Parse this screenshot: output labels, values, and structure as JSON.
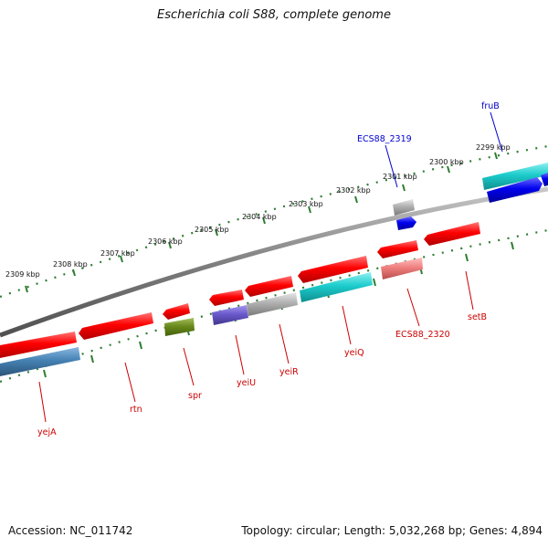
{
  "title": "Escherichia coli S88, complete genome",
  "accession": "Accession: NC_011742",
  "summary": "Topology: circular; Length: 5,032,268 bp; Genes: 4,894",
  "scale_labels": [
    "2309 kbp",
    "2308 kbp",
    "2307 kbp",
    "2306 kbp",
    "2305 kbp",
    "2304 kbp",
    "2303 kbp",
    "2302 kbp",
    "2301 kbp",
    "2300 kbp",
    "2299 kbp"
  ],
  "gene_labels": {
    "fruB": "fruB",
    "ECS88_2319": "ECS88_2319",
    "setB": "setB",
    "ECS88_2320": "ECS88_2320",
    "yeiQ": "yeiQ",
    "yeiR": "yeiR",
    "yeiU": "yeiU",
    "spr": "spr",
    "rtn": "rtn",
    "yejA": "yejA"
  },
  "colors": {
    "red": "#ff0000",
    "cyan": "#1ccccc",
    "blue": "#0000ee",
    "gray": "#b0b0b0",
    "olive": "#6a8a1c",
    "slate": "#6a5acd",
    "steel": "#4682b4",
    "pink": "#f08080",
    "tick": "#2e7d32",
    "backbone": "#808080",
    "label_red": "#cc0000",
    "label_blue": "#0000cc"
  }
}
